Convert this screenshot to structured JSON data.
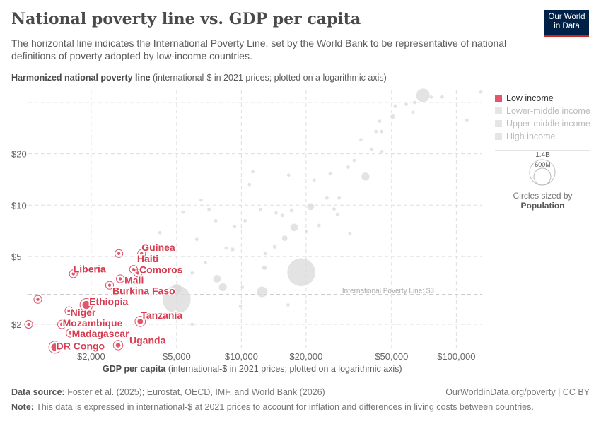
{
  "header": {
    "title": "National poverty line vs. GDP per capita",
    "subtitle": "The horizontal line indicates the International Poverty Line, set by the World Bank to be representative of national definitions of poverty adopted by low-income countries.",
    "logo": "Our World in Data"
  },
  "chart_data": {
    "type": "scatter",
    "title": "National poverty line vs. GDP per capita",
    "ylabel_bold": "Harmonized national poverty line",
    "ylabel_rest": " (international-$ in 2021 prices; plotted on a logarithmic axis)",
    "xlabel_bold": "GDP per capita",
    "xlabel_rest": " (international-$ in 2021 prices; plotted on a logarithmic axis)",
    "x_scale": "log",
    "y_scale": "log",
    "xlim": [
      1020,
      132000
    ],
    "ylim": [
      1.46,
      47
    ],
    "x_ticks": [
      {
        "v": 2000,
        "label": "$2,000"
      },
      {
        "v": 5000,
        "label": "$5,000"
      },
      {
        "v": 10000,
        "label": "$10,000"
      },
      {
        "v": 20000,
        "label": "$20,000"
      },
      {
        "v": 50000,
        "label": "$50,000"
      },
      {
        "v": 100000,
        "label": "$100,000"
      }
    ],
    "y_ticks": [
      {
        "v": 2,
        "label": "$2"
      },
      {
        "v": 5,
        "label": "$5"
      },
      {
        "v": 10,
        "label": "$10"
      },
      {
        "v": 20,
        "label": "$20"
      }
    ],
    "grid": true,
    "reference_line": {
      "y": 3,
      "label": "International Poverty Line: $3"
    },
    "colors": {
      "low_income": "#e0566a",
      "label": "#d73c50",
      "other": "#d9d9d9"
    },
    "legend_position": "right",
    "legend": [
      "Low income",
      "Lower-middle income",
      "Upper-middle income",
      "High income"
    ],
    "size_legend": {
      "large": "1.4B",
      "small": "600M",
      "caption": "Circles sized by",
      "variable": "Population"
    },
    "low_income": [
      {
        "name": "DR Congo",
        "x": 1357,
        "y": 1.47,
        "pop": 110
      },
      {
        "name": "Uganda",
        "x": 2670,
        "y": 1.51,
        "pop": 48
      },
      {
        "name": "Madagascar",
        "x": 1602,
        "y": 1.78,
        "pop": 30
      },
      {
        "name": "Mozambique",
        "x": 1463,
        "y": 2.0,
        "pop": 33
      },
      {
        "name": "Tanzania",
        "x": 3383,
        "y": 2.08,
        "pop": 66
      },
      {
        "name": "Niger",
        "x": 1578,
        "y": 2.4,
        "pop": 26
      },
      {
        "name": "Ethiopia",
        "x": 1900,
        "y": 2.6,
        "pop": 126
      },
      {
        "name": "",
        "x": 1130,
        "y": 2.8,
        "pop": 12
      },
      {
        "name": "",
        "x": 1024,
        "y": 2.0,
        "pop": 12
      },
      {
        "name": "Burkina Faso",
        "x": 2437,
        "y": 3.39,
        "pop": 23
      },
      {
        "name": "Mali",
        "x": 2733,
        "y": 3.7,
        "pop": 23
      },
      {
        "name": "Haiti",
        "x": 3150,
        "y": 4.2,
        "pop": 11
      },
      {
        "name": "Comoros",
        "x": 3300,
        "y": 4.0,
        "pop": 1
      },
      {
        "name": "Liberia",
        "x": 1653,
        "y": 3.96,
        "pop": 5
      },
      {
        "name": "Guinea",
        "x": 3434,
        "y": 5.2,
        "pop": 14
      },
      {
        "name": "",
        "x": 2692,
        "y": 5.2,
        "pop": 18
      }
    ],
    "other": [
      [
        19000,
        4.04,
        1410
      ],
      [
        5000,
        2.8,
        1430
      ],
      [
        5000,
        3.2,
        220
      ],
      [
        12500,
        3.1,
        210
      ],
      [
        8200,
        3.3,
        120
      ],
      [
        7700,
        3.7,
        110
      ],
      [
        70000,
        44,
        335
      ],
      [
        37800,
        14.7,
        125
      ],
      [
        21000,
        9.8,
        95
      ],
      [
        17600,
        7.4,
        110
      ],
      [
        15900,
        6.4,
        60
      ],
      [
        14300,
        5.7,
        30
      ],
      [
        12800,
        4.3,
        40
      ],
      [
        9100,
        5.5,
        30
      ],
      [
        5900,
        4.0,
        20
      ],
      [
        10100,
        3.3,
        10
      ],
      [
        16500,
        2.6,
        8
      ],
      [
        9900,
        2.55,
        8
      ],
      [
        5900,
        2.0,
        10
      ],
      [
        4180,
        6.9,
        10
      ],
      [
        6500,
        10.7,
        5
      ],
      [
        11300,
        15.7,
        5
      ],
      [
        10900,
        13.2,
        5
      ],
      [
        25900,
        15.3,
        10
      ],
      [
        31400,
        16.7,
        5
      ],
      [
        40400,
        21.3,
        10
      ],
      [
        42300,
        27,
        20
      ],
      [
        50600,
        33,
        40
      ],
      [
        58500,
        39,
        20
      ],
      [
        62800,
        35,
        10
      ],
      [
        76400,
        43,
        5
      ],
      [
        86000,
        43,
        5
      ],
      [
        112000,
        31.5,
        5
      ],
      [
        130000,
        46,
        5
      ],
      [
        44000,
        31,
        10
      ],
      [
        36000,
        24.2,
        10
      ],
      [
        45000,
        20.6,
        5
      ],
      [
        21800,
        14,
        10
      ],
      [
        16600,
        15,
        5
      ],
      [
        14500,
        9,
        10
      ],
      [
        12300,
        9.4,
        5
      ],
      [
        10400,
        8.1,
        5
      ],
      [
        9300,
        7.5,
        5
      ],
      [
        7600,
        8.1,
        5
      ],
      [
        6200,
        6.3,
        5
      ],
      [
        6800,
        4.6,
        5
      ],
      [
        12900,
        5.2,
        15
      ],
      [
        20100,
        7.0,
        10
      ],
      [
        28000,
        8.8,
        5
      ],
      [
        32000,
        6.8,
        5
      ],
      [
        27000,
        9.5,
        5
      ],
      [
        25000,
        11.0,
        5
      ],
      [
        17100,
        9.3,
        15
      ],
      [
        15500,
        8.7,
        10
      ],
      [
        5350,
        9.1,
        5
      ],
      [
        7070,
        9.4,
        5
      ],
      [
        23000,
        7.6,
        5
      ],
      [
        28500,
        11,
        5
      ],
      [
        33500,
        18.3,
        10
      ],
      [
        52000,
        38,
        30
      ],
      [
        64000,
        40,
        15
      ],
      [
        45000,
        27,
        10
      ],
      [
        8500,
        5.6,
        10
      ]
    ]
  },
  "footer": {
    "source_label": "Data source:",
    "source": " Foster et al. (2025); Eurostat, OECD, IMF, and World Bank (2026)",
    "link": "OurWorldinData.org/poverty | CC BY",
    "note_label": "Note:",
    "note": " This data is expressed in international-$ at 2021 prices to account for inflation and differences in living costs between countries."
  }
}
